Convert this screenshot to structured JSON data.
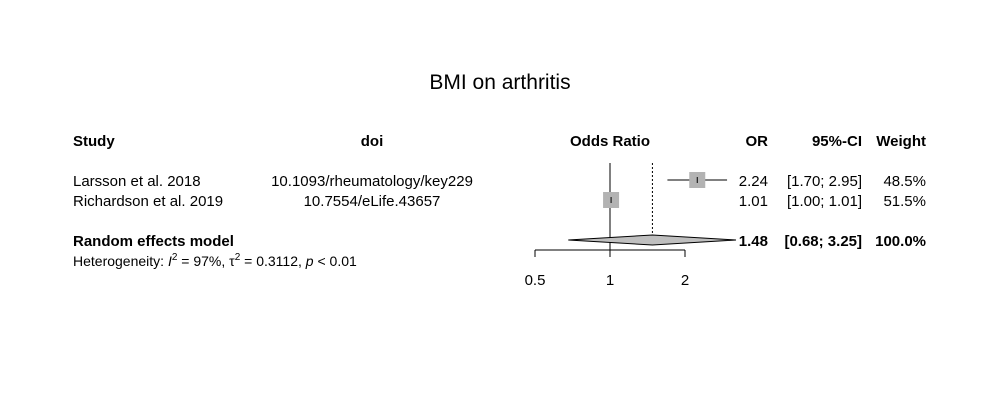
{
  "chart_data": {
    "type": "forest",
    "title": "BMI on arthritis",
    "columns": {
      "study": "Study",
      "doi": "doi",
      "effect": "Odds Ratio",
      "or": "OR",
      "ci": "95%-CI",
      "weight": "Weight"
    },
    "studies": [
      {
        "study": "Larsson et al. 2018",
        "doi": "10.1093/rheumatology/key229",
        "or": 2.24,
        "lower": 1.7,
        "upper": 2.95,
        "weight_pct": 48.5,
        "or_label": "2.24",
        "ci_label": "[1.70; 2.95]",
        "weight_label": "48.5%"
      },
      {
        "study": "Richardson et al. 2019",
        "doi": "10.7554/eLife.43657",
        "or": 1.01,
        "lower": 1.0,
        "upper": 1.01,
        "weight_pct": 51.5,
        "or_label": "1.01",
        "ci_label": "[1.00; 1.01]",
        "weight_label": "51.5%"
      }
    ],
    "pooled": {
      "label": "Random effects model",
      "or": 1.48,
      "lower": 0.68,
      "upper": 3.25,
      "or_label": "1.48",
      "ci_label": "[0.68; 3.25]",
      "weight_label": "100.0%"
    },
    "heterogeneity": {
      "prefix": "Heterogeneity: ",
      "i2_symbol": "I",
      "sup": "2",
      "i2_value": " = 97%, ",
      "tau_symbol": "τ",
      "tau_value": " = 0.3112, ",
      "p_symbol": "p",
      "p_value": " < 0.01"
    },
    "x_axis": {
      "scale": "log",
      "ticks": [
        0.5,
        1,
        2
      ],
      "tick_labels": [
        "0.5",
        "1",
        "2"
      ],
      "null_line": 1
    },
    "colors": {
      "square": "#b3b3b3",
      "diamond": "#bfbfbf",
      "line": "#000000"
    }
  }
}
